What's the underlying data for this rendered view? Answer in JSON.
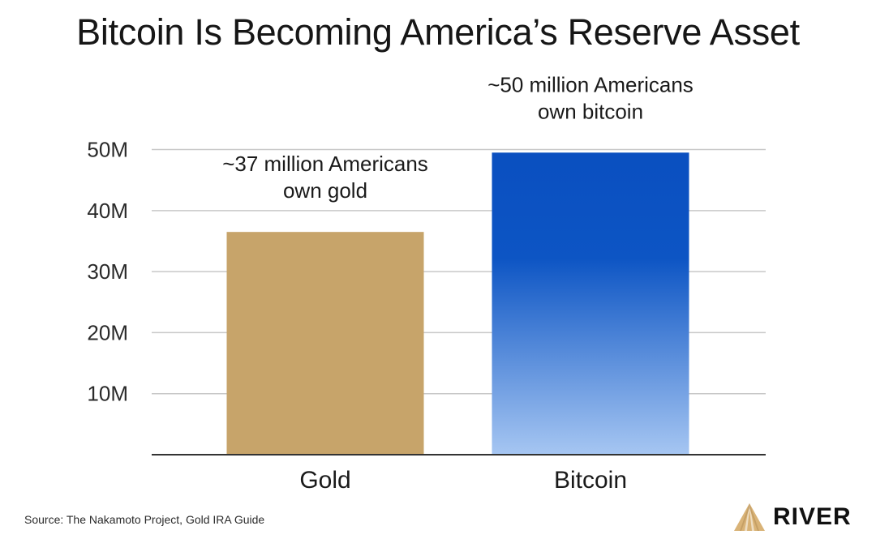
{
  "title": "Bitcoin Is Becoming America’s Reserve Asset",
  "source": "Source: The Nakamoto Project, Gold IRA Guide",
  "brand": {
    "name": "RIVER",
    "icon": "river-mountain-logo-icon"
  },
  "colors": {
    "gold": "#C7A46A",
    "bitcoin_top": "#0A4FC0",
    "bitcoin_bottom": "#A6C6F2",
    "grid": "#C8C8C8",
    "axis": "#333333"
  },
  "chart_data": {
    "type": "bar",
    "title": "Bitcoin Is Becoming America’s Reserve Asset",
    "categories": [
      "Gold",
      "Bitcoin"
    ],
    "values": [
      36.5,
      49.5
    ],
    "annotations": [
      [
        "~37 million Americans",
        "own gold"
      ],
      [
        "~50 million Americans",
        "own bitcoin"
      ]
    ],
    "yticks": [
      10,
      20,
      30,
      40,
      50
    ],
    "ytick_labels": [
      "10M",
      "20M",
      "30M",
      "40M",
      "50M"
    ],
    "ylim": [
      0,
      51
    ],
    "xlabel": "",
    "ylabel": "",
    "grid": true,
    "legend": "none"
  }
}
